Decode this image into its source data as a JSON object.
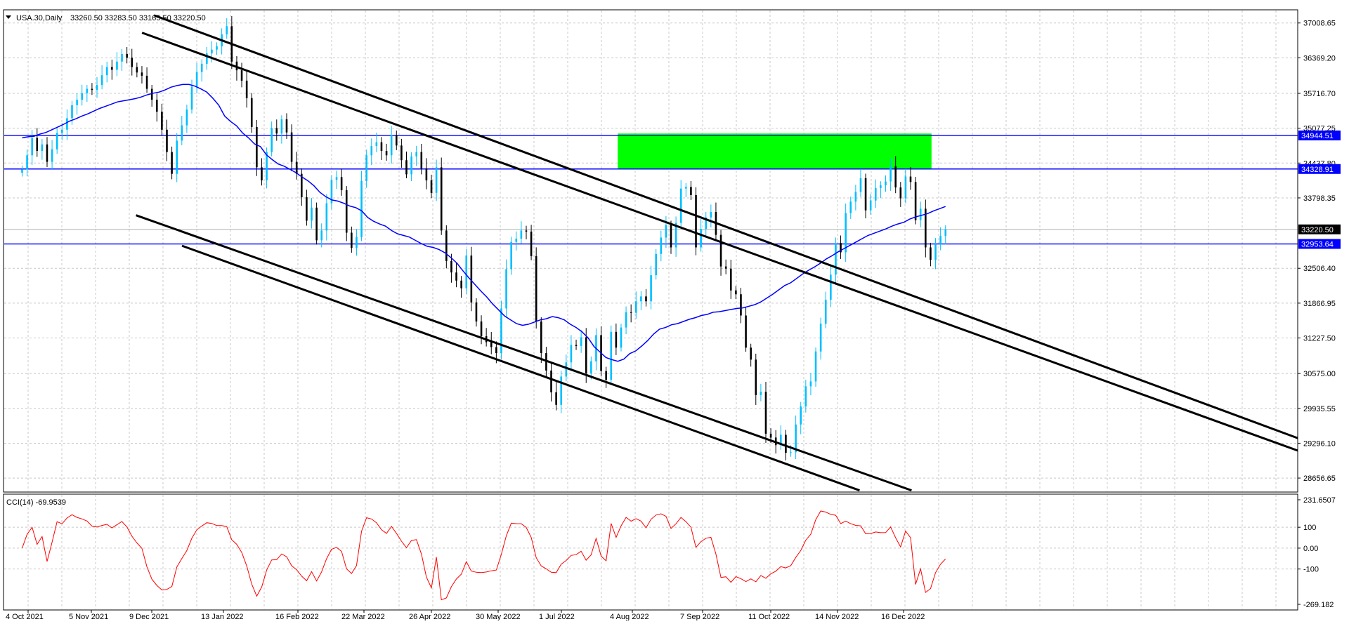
{
  "toolbar": {},
  "chart_data": {
    "type": "candlestick",
    "symbol_label": "USA.30,Daily",
    "ohlc_label": "33260.50 33283.50 33165.50 33220.50",
    "y_ticks": [
      "37008.65",
      "36369.20",
      "35716.70",
      "35077.25",
      "34437.80",
      "33798.35",
      "32506.40",
      "31866.95",
      "31227.50",
      "30575.00",
      "29935.55",
      "29296.10",
      "28656.65"
    ],
    "x_ticks": [
      "4 Oct 2021",
      "5 Nov 2021",
      "9 Dec 2021",
      "13 Jan 2022",
      "16 Feb 2022",
      "22 Mar 2022",
      "26 Apr 2022",
      "30 May 2022",
      "1 Jul 2022",
      "4 Aug 2022",
      "7 Sep 2022",
      "11 Oct 2022",
      "14 Nov 2022",
      "16 Dec 2022"
    ],
    "y_range": [
      28400,
      37250
    ],
    "horizontal_levels": [
      {
        "value": 34944.51,
        "label": "34944.51"
      },
      {
        "value": 34328.91,
        "label": "34328.91"
      },
      {
        "value": 32953.64,
        "label": "32953.64"
      }
    ],
    "current_price": {
      "value": 33220.5,
      "label": "33220.50"
    },
    "zone": {
      "from_date": "2022-07-26",
      "to_date": "2022-12-30",
      "low": 34330,
      "high": 34980,
      "color": "#00ff00"
    },
    "trend_lines": [
      {
        "x1": "2021-12-06",
        "y1": 37150,
        "x2": "2023-08-10",
        "y2": 28850
      },
      {
        "x1": "2021-11-30",
        "y1": 36830,
        "x2": "2023-08-20",
        "y2": 28500
      },
      {
        "x1": "2021-11-27",
        "y1": 33480,
        "x2": "2022-12-20",
        "y2": 28430
      },
      {
        "x1": "2021-12-20",
        "y1": 32920,
        "x2": "2022-11-24",
        "y2": 28430
      }
    ],
    "colors": {
      "bull": "#00bfff",
      "bear": "#000000",
      "ma": "#0000ff",
      "level": "#0000ff",
      "cci": "#ff0000",
      "grid": "#c8c8c8"
    },
    "cci": {
      "label": "CCI(14) -69.9539",
      "ticks": [
        "231.6507",
        "100",
        "0.00",
        "-100",
        "-269.182"
      ],
      "range": [
        -269.182,
        231.6507
      ]
    },
    "price_series": {
      "start_date": "2021-10-01",
      "end_date": "2023-01-06",
      "closes": [
        34320,
        34580,
        34900,
        34660,
        34780,
        34460,
        34690,
        34990,
        35050,
        35260,
        35500,
        35600,
        35720,
        35800,
        35780,
        35870,
        36050,
        36200,
        36150,
        36300,
        36440,
        36370,
        36200,
        36100,
        36040,
        35800,
        35600,
        35380,
        35050,
        34640,
        34240,
        34850,
        35130,
        35420,
        35840,
        36110,
        36260,
        36450,
        36520,
        36580,
        36800,
        36950,
        36300,
        36140,
        35950,
        35630,
        35100,
        34360,
        34120,
        34640,
        35080,
        34980,
        35240,
        35000,
        34460,
        34240,
        33810,
        33380,
        33620,
        33020,
        33200,
        33700,
        34130,
        34180,
        33940,
        33160,
        32880,
        33080,
        34110,
        34580,
        34750,
        34820,
        34660,
        34580,
        34950,
        34760,
        34490,
        34230,
        34560,
        34640,
        34340,
        34120,
        33890,
        34360,
        33200,
        32640,
        32430,
        32280,
        32140,
        32740,
        31880,
        31530,
        31260,
        31150,
        31060,
        30950,
        31770,
        32490,
        32990,
        33050,
        33200,
        33180,
        32730,
        31530,
        30950,
        30630,
        30230,
        30000,
        30520,
        30780,
        31100,
        31080,
        31240,
        30580,
        30800,
        31280,
        30620,
        30460,
        31340,
        31050,
        31420,
        31700,
        31690,
        31900,
        31990,
        31900,
        32380,
        32770,
        33070,
        33300,
        32890,
        33340,
        33970,
        34000,
        33850,
        32890,
        33230,
        33440,
        33540,
        33120,
        32540,
        32500,
        32100,
        32030,
        31640,
        31050,
        30830,
        30180,
        30240,
        29470,
        29400,
        29260,
        29450,
        29120,
        29130,
        29640,
        29970,
        30340,
        30430,
        30980,
        31490,
        31930,
        32390,
        32970,
        32800,
        33520,
        33730,
        33910,
        34160,
        33570,
        33750,
        33980,
        34030,
        34100,
        34380,
        33990,
        33790,
        34190,
        34090,
        33390,
        33600,
        32890,
        32660,
        32940,
        33100,
        33220
      ],
      "ma": [
        34900,
        34920,
        34930,
        34970,
        35000,
        35050,
        35100,
        35150,
        35210,
        35250,
        35300,
        35340,
        35390,
        35440,
        35480,
        35520,
        35560,
        35580,
        35600,
        35620,
        35650,
        35690,
        35720,
        35740,
        35780,
        35830,
        35860,
        35880,
        35880,
        35850,
        35800,
        35740,
        35630,
        35500,
        35300,
        35200,
        35120,
        34990,
        34900,
        34790,
        34740,
        34590,
        34500,
        34420,
        34380,
        34320,
        34260,
        34180,
        34110,
        34020,
        33900,
        33820,
        33760,
        33740,
        33700,
        33650,
        33620,
        33560,
        33440,
        33370,
        33320,
        33280,
        33200,
        33140,
        33110,
        33080,
        33020,
        32960,
        32910,
        32890,
        32850,
        32790,
        32700,
        32600,
        32460,
        32330,
        32210,
        32090,
        31980,
        31850,
        31740,
        31630,
        31560,
        31490,
        31460,
        31480,
        31520,
        31560,
        31580,
        31620,
        31600,
        31560,
        31480,
        31420,
        31340,
        31230,
        31070,
        30970,
        30870,
        30830,
        30800,
        30840,
        30940,
        30990,
        31080,
        31180,
        31300,
        31390,
        31420,
        31470,
        31490,
        31530,
        31570,
        31600,
        31640,
        31660,
        31700,
        31710,
        31730,
        31750,
        31770,
        31780,
        31810,
        31840,
        31890,
        31960,
        32030,
        32110,
        32190,
        32240,
        32320,
        32400,
        32470,
        32530,
        32600,
        32680,
        32740,
        32810,
        32870,
        32930,
        32990,
        33050,
        33110,
        33150,
        33190,
        33230,
        33280,
        33320,
        33350,
        33410,
        33450,
        33480,
        33510,
        33560,
        33600,
        33640
      ]
    }
  }
}
